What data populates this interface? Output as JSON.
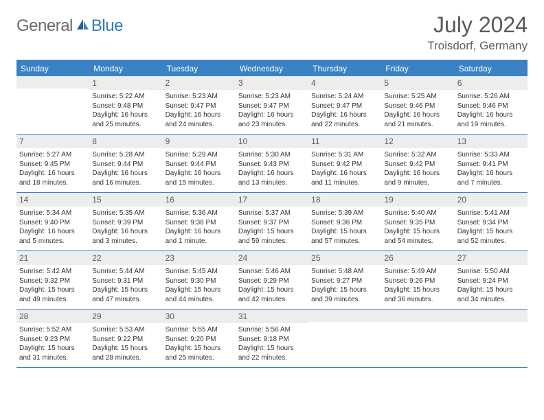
{
  "logo": {
    "general": "General",
    "blue": "Blue"
  },
  "title": {
    "month": "July 2024",
    "location": "Troisdorf, Germany"
  },
  "day_labels": [
    "Sunday",
    "Monday",
    "Tuesday",
    "Wednesday",
    "Thursday",
    "Friday",
    "Saturday"
  ],
  "colors": {
    "header_bg": "#3b82c4",
    "header_text": "#ffffff",
    "date_bg": "#eceded",
    "border": "#3b82c4",
    "logo_gray": "#6a6a6a",
    "logo_blue": "#2b7dbf"
  },
  "weeks": [
    [
      {
        "n": "",
        "sr": "",
        "ss": "",
        "dl": ""
      },
      {
        "n": "1",
        "sr": "Sunrise: 5:22 AM",
        "ss": "Sunset: 9:48 PM",
        "dl": "Daylight: 16 hours and 25 minutes."
      },
      {
        "n": "2",
        "sr": "Sunrise: 5:23 AM",
        "ss": "Sunset: 9:47 PM",
        "dl": "Daylight: 16 hours and 24 minutes."
      },
      {
        "n": "3",
        "sr": "Sunrise: 5:23 AM",
        "ss": "Sunset: 9:47 PM",
        "dl": "Daylight: 16 hours and 23 minutes."
      },
      {
        "n": "4",
        "sr": "Sunrise: 5:24 AM",
        "ss": "Sunset: 9:47 PM",
        "dl": "Daylight: 16 hours and 22 minutes."
      },
      {
        "n": "5",
        "sr": "Sunrise: 5:25 AM",
        "ss": "Sunset: 9:46 PM",
        "dl": "Daylight: 16 hours and 21 minutes."
      },
      {
        "n": "6",
        "sr": "Sunrise: 5:26 AM",
        "ss": "Sunset: 9:46 PM",
        "dl": "Daylight: 16 hours and 19 minutes."
      }
    ],
    [
      {
        "n": "7",
        "sr": "Sunrise: 5:27 AM",
        "ss": "Sunset: 9:45 PM",
        "dl": "Daylight: 16 hours and 18 minutes."
      },
      {
        "n": "8",
        "sr": "Sunrise: 5:28 AM",
        "ss": "Sunset: 9:44 PM",
        "dl": "Daylight: 16 hours and 16 minutes."
      },
      {
        "n": "9",
        "sr": "Sunrise: 5:29 AM",
        "ss": "Sunset: 9:44 PM",
        "dl": "Daylight: 16 hours and 15 minutes."
      },
      {
        "n": "10",
        "sr": "Sunrise: 5:30 AM",
        "ss": "Sunset: 9:43 PM",
        "dl": "Daylight: 16 hours and 13 minutes."
      },
      {
        "n": "11",
        "sr": "Sunrise: 5:31 AM",
        "ss": "Sunset: 9:42 PM",
        "dl": "Daylight: 16 hours and 11 minutes."
      },
      {
        "n": "12",
        "sr": "Sunrise: 5:32 AM",
        "ss": "Sunset: 9:42 PM",
        "dl": "Daylight: 16 hours and 9 minutes."
      },
      {
        "n": "13",
        "sr": "Sunrise: 5:33 AM",
        "ss": "Sunset: 9:41 PM",
        "dl": "Daylight: 16 hours and 7 minutes."
      }
    ],
    [
      {
        "n": "14",
        "sr": "Sunrise: 5:34 AM",
        "ss": "Sunset: 9:40 PM",
        "dl": "Daylight: 16 hours and 5 minutes."
      },
      {
        "n": "15",
        "sr": "Sunrise: 5:35 AM",
        "ss": "Sunset: 9:39 PM",
        "dl": "Daylight: 16 hours and 3 minutes."
      },
      {
        "n": "16",
        "sr": "Sunrise: 5:36 AM",
        "ss": "Sunset: 9:38 PM",
        "dl": "Daylight: 16 hours and 1 minute."
      },
      {
        "n": "17",
        "sr": "Sunrise: 5:37 AM",
        "ss": "Sunset: 9:37 PM",
        "dl": "Daylight: 15 hours and 59 minutes."
      },
      {
        "n": "18",
        "sr": "Sunrise: 5:39 AM",
        "ss": "Sunset: 9:36 PM",
        "dl": "Daylight: 15 hours and 57 minutes."
      },
      {
        "n": "19",
        "sr": "Sunrise: 5:40 AM",
        "ss": "Sunset: 9:35 PM",
        "dl": "Daylight: 15 hours and 54 minutes."
      },
      {
        "n": "20",
        "sr": "Sunrise: 5:41 AM",
        "ss": "Sunset: 9:34 PM",
        "dl": "Daylight: 15 hours and 52 minutes."
      }
    ],
    [
      {
        "n": "21",
        "sr": "Sunrise: 5:42 AM",
        "ss": "Sunset: 9:32 PM",
        "dl": "Daylight: 15 hours and 49 minutes."
      },
      {
        "n": "22",
        "sr": "Sunrise: 5:44 AM",
        "ss": "Sunset: 9:31 PM",
        "dl": "Daylight: 15 hours and 47 minutes."
      },
      {
        "n": "23",
        "sr": "Sunrise: 5:45 AM",
        "ss": "Sunset: 9:30 PM",
        "dl": "Daylight: 15 hours and 44 minutes."
      },
      {
        "n": "24",
        "sr": "Sunrise: 5:46 AM",
        "ss": "Sunset: 9:29 PM",
        "dl": "Daylight: 15 hours and 42 minutes."
      },
      {
        "n": "25",
        "sr": "Sunrise: 5:48 AM",
        "ss": "Sunset: 9:27 PM",
        "dl": "Daylight: 15 hours and 39 minutes."
      },
      {
        "n": "26",
        "sr": "Sunrise: 5:49 AM",
        "ss": "Sunset: 9:26 PM",
        "dl": "Daylight: 15 hours and 36 minutes."
      },
      {
        "n": "27",
        "sr": "Sunrise: 5:50 AM",
        "ss": "Sunset: 9:24 PM",
        "dl": "Daylight: 15 hours and 34 minutes."
      }
    ],
    [
      {
        "n": "28",
        "sr": "Sunrise: 5:52 AM",
        "ss": "Sunset: 9:23 PM",
        "dl": "Daylight: 15 hours and 31 minutes."
      },
      {
        "n": "29",
        "sr": "Sunrise: 5:53 AM",
        "ss": "Sunset: 9:22 PM",
        "dl": "Daylight: 15 hours and 28 minutes."
      },
      {
        "n": "30",
        "sr": "Sunrise: 5:55 AM",
        "ss": "Sunset: 9:20 PM",
        "dl": "Daylight: 15 hours and 25 minutes."
      },
      {
        "n": "31",
        "sr": "Sunrise: 5:56 AM",
        "ss": "Sunset: 9:18 PM",
        "dl": "Daylight: 15 hours and 22 minutes."
      },
      {
        "n": "",
        "sr": "",
        "ss": "",
        "dl": ""
      },
      {
        "n": "",
        "sr": "",
        "ss": "",
        "dl": ""
      },
      {
        "n": "",
        "sr": "",
        "ss": "",
        "dl": ""
      }
    ]
  ]
}
